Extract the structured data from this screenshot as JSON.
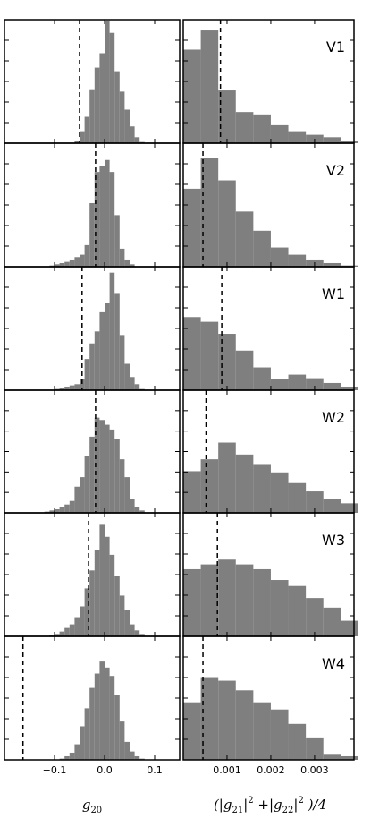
{
  "chart_data": {
    "type": "bar",
    "grid": false,
    "columns": [
      {
        "xlabel": "g",
        "xlabel_sub": "20",
        "xlim": [
          -0.2,
          0.15
        ],
        "ticks": [
          -0.1,
          0.0,
          0.1
        ],
        "tick_labels": [
          "−0.1",
          "0.0",
          "0.1"
        ]
      },
      {
        "xlabel_parts": [
          "(|g",
          "21",
          "|",
          "2",
          " +|g",
          "22",
          "|",
          "2",
          " )/4"
        ],
        "xlim": [
          0.0,
          0.0039
        ],
        "ticks": [
          0.001,
          0.002,
          0.003
        ],
        "tick_labels": [
          "0.001",
          "0.002",
          "0.003"
        ]
      }
    ],
    "panels": [
      {
        "name": "V1",
        "col": 0,
        "row": 0,
        "ylim": [
          0,
          1
        ],
        "bin_width": 0.01,
        "bin_starts": [
          -0.06,
          -0.05,
          -0.04,
          -0.03,
          -0.02,
          -0.01,
          0.0,
          0.01,
          0.02,
          0.03,
          0.04,
          0.05,
          0.06,
          0.07
        ],
        "values": [
          0.02,
          0.1,
          0.22,
          0.45,
          0.63,
          0.75,
          1.02,
          0.92,
          0.6,
          0.43,
          0.28,
          0.14,
          0.05,
          0.01
        ],
        "reference": -0.05
      },
      {
        "name": "V1",
        "col": 1,
        "row": 0,
        "ylim": [
          0,
          1
        ],
        "bin_width": 0.0004,
        "bin_starts": [
          0.0,
          0.0004,
          0.0008,
          0.0012,
          0.0016,
          0.002,
          0.0024,
          0.0028,
          0.0032,
          0.0036
        ],
        "values": [
          0.78,
          0.94,
          0.44,
          0.26,
          0.24,
          0.15,
          0.1,
          0.07,
          0.05,
          0.02
        ],
        "reference": 0.00085
      },
      {
        "name": "V2",
        "col": 0,
        "row": 1,
        "ylim": [
          0,
          1
        ],
        "bin_width": 0.01,
        "bin_starts": [
          -0.11,
          -0.1,
          -0.09,
          -0.08,
          -0.07,
          -0.06,
          -0.05,
          -0.04,
          -0.03,
          -0.02,
          -0.01,
          0.0,
          0.01,
          0.02,
          0.03,
          0.04,
          0.05
        ],
        "values": [
          0.01,
          0.02,
          0.03,
          0.04,
          0.06,
          0.08,
          0.1,
          0.18,
          0.53,
          0.79,
          0.84,
          0.89,
          0.79,
          0.43,
          0.15,
          0.06,
          0.02
        ],
        "reference": -0.018
      },
      {
        "name": "V2",
        "col": 1,
        "row": 1,
        "ylim": [
          0,
          1
        ],
        "bin_width": 0.0004,
        "bin_starts": [
          0.0,
          0.0004,
          0.0008,
          0.0012,
          0.0016,
          0.002,
          0.0024,
          0.0028,
          0.0032,
          0.0036
        ],
        "values": [
          0.65,
          0.91,
          0.72,
          0.46,
          0.3,
          0.16,
          0.1,
          0.06,
          0.03,
          0.01
        ],
        "reference": 0.00045
      },
      {
        "name": "W1",
        "col": 0,
        "row": 2,
        "ylim": [
          0,
          1
        ],
        "bin_width": 0.01,
        "bin_starts": [
          -0.1,
          -0.09,
          -0.08,
          -0.07,
          -0.06,
          -0.05,
          -0.04,
          -0.03,
          -0.02,
          -0.01,
          0.0,
          0.01,
          0.02,
          0.03,
          0.04,
          0.05,
          0.06,
          0.07
        ],
        "values": [
          0.01,
          0.02,
          0.03,
          0.04,
          0.05,
          0.09,
          0.26,
          0.39,
          0.49,
          0.65,
          0.73,
          0.98,
          0.81,
          0.46,
          0.22,
          0.11,
          0.05,
          0.01
        ],
        "reference": -0.045
      },
      {
        "name": "W1",
        "col": 1,
        "row": 2,
        "ylim": [
          0,
          1
        ],
        "bin_width": 0.0004,
        "bin_starts": [
          0.0,
          0.0004,
          0.0008,
          0.0012,
          0.0016,
          0.002,
          0.0024,
          0.0028,
          0.0032,
          0.0036
        ],
        "values": [
          0.61,
          0.57,
          0.47,
          0.33,
          0.19,
          0.09,
          0.13,
          0.1,
          0.06,
          0.03
        ],
        "reference": 0.00088
      },
      {
        "name": "W2",
        "col": 0,
        "row": 3,
        "ylim": [
          0,
          1
        ],
        "bin_width": 0.01,
        "bin_starts": [
          -0.12,
          -0.11,
          -0.1,
          -0.09,
          -0.08,
          -0.07,
          -0.06,
          -0.05,
          -0.04,
          -0.03,
          -0.02,
          -0.01,
          0.0,
          0.01,
          0.02,
          0.03,
          0.04,
          0.05,
          0.06,
          0.07
        ],
        "values": [
          0.01,
          0.02,
          0.03,
          0.05,
          0.07,
          0.1,
          0.22,
          0.3,
          0.48,
          0.64,
          0.8,
          0.78,
          0.74,
          0.7,
          0.62,
          0.45,
          0.3,
          0.12,
          0.05,
          0.02
        ],
        "reference": -0.018
      },
      {
        "name": "W2",
        "col": 1,
        "row": 3,
        "ylim": [
          0,
          1
        ],
        "bin_width": 0.0004,
        "bin_starts": [
          0.0,
          0.0004,
          0.0008,
          0.0012,
          0.0016,
          0.002,
          0.0024,
          0.0028,
          0.0032,
          0.0036
        ],
        "values": [
          0.35,
          0.45,
          0.59,
          0.49,
          0.41,
          0.34,
          0.25,
          0.18,
          0.12,
          0.08
        ],
        "reference": 0.00052
      },
      {
        "name": "W3",
        "col": 0,
        "row": 4,
        "ylim": [
          0,
          1
        ],
        "bin_width": 0.01,
        "bin_starts": [
          -0.11,
          -0.1,
          -0.09,
          -0.08,
          -0.07,
          -0.06,
          -0.05,
          -0.04,
          -0.03,
          -0.02,
          -0.01,
          0.0,
          0.01,
          0.02,
          0.03,
          0.04,
          0.05,
          0.06,
          0.07
        ],
        "values": [
          0.01,
          0.02,
          0.04,
          0.07,
          0.1,
          0.16,
          0.25,
          0.4,
          0.55,
          0.72,
          0.93,
          0.83,
          0.68,
          0.5,
          0.34,
          0.22,
          0.1,
          0.05,
          0.02
        ],
        "reference": -0.032
      },
      {
        "name": "W3",
        "col": 1,
        "row": 4,
        "ylim": [
          0,
          1
        ],
        "bin_width": 0.0004,
        "bin_starts": [
          0.0,
          0.0004,
          0.0008,
          0.0012,
          0.0016,
          0.002,
          0.0024,
          0.0028,
          0.0032,
          0.0036
        ],
        "values": [
          0.56,
          0.6,
          0.64,
          0.6,
          0.56,
          0.47,
          0.42,
          0.32,
          0.24,
          0.13
        ],
        "reference": 0.00078
      },
      {
        "name": "W4",
        "col": 0,
        "row": 5,
        "ylim": [
          0,
          1
        ],
        "bin_width": 0.01,
        "bin_starts": [
          -0.09,
          -0.08,
          -0.07,
          -0.06,
          -0.05,
          -0.04,
          -0.03,
          -0.02,
          -0.01,
          0.0,
          0.01,
          0.02,
          0.03,
          0.04,
          0.05,
          0.06,
          0.07
        ],
        "values": [
          0.01,
          0.03,
          0.06,
          0.13,
          0.28,
          0.43,
          0.6,
          0.72,
          0.82,
          0.77,
          0.7,
          0.54,
          0.32,
          0.15,
          0.07,
          0.03,
          0.01
        ],
        "reference": -0.163
      },
      {
        "name": "W4",
        "col": 1,
        "row": 5,
        "ylim": [
          0,
          1
        ],
        "bin_width": 0.0004,
        "bin_starts": [
          0.0,
          0.0004,
          0.0008,
          0.0012,
          0.0016,
          0.002,
          0.0024,
          0.0028,
          0.0032,
          0.0036
        ],
        "values": [
          0.48,
          0.69,
          0.66,
          0.58,
          0.48,
          0.42,
          0.3,
          0.18,
          0.05,
          0.03
        ],
        "reference": 0.00045
      }
    ]
  },
  "style": {
    "bar_color": "#7f7f7f",
    "axis_color": "#000000",
    "reference_line_color": "#000000"
  }
}
